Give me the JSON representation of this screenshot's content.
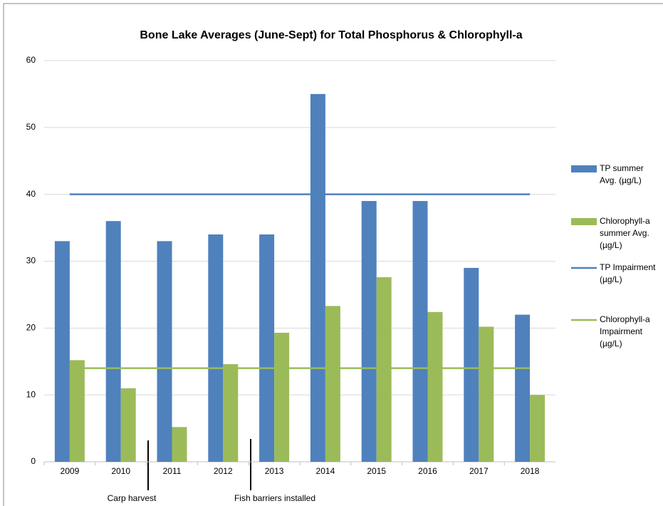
{
  "chart_data": {
    "type": "bar",
    "title": "Bone Lake Averages (June-Sept) for Total Phosphorus & Chlorophyll-a",
    "categories": [
      "2009",
      "2010",
      "2011",
      "2012",
      "2013",
      "2014",
      "2015",
      "2016",
      "2017",
      "2018"
    ],
    "series": [
      {
        "name": "TP summer Avg. (µg/L)",
        "color": "#4f81bd",
        "type": "bar",
        "values": [
          33,
          36,
          33,
          34,
          34,
          55,
          39,
          39,
          29,
          22
        ]
      },
      {
        "name": "Chlorophyll-a summer Avg. (µg/L)",
        "color": "#9bbb59",
        "type": "bar",
        "values": [
          15.2,
          11,
          5.2,
          14.6,
          19.3,
          23.3,
          27.6,
          22.4,
          20.2,
          10
        ]
      },
      {
        "name": "TP Impairment (µg/L)",
        "color": "#4f81bd",
        "type": "line",
        "values": [
          40,
          40,
          40,
          40,
          40,
          40,
          40,
          40,
          40,
          40
        ]
      },
      {
        "name": "Chlorophyll-a Impairment (µg/L)",
        "color": "#9bbb59",
        "type": "line",
        "values": [
          14,
          14,
          14,
          14,
          14,
          14,
          14,
          14,
          14,
          14
        ]
      }
    ],
    "annotations": [
      "Carp harvest",
      "Fish barriers installed"
    ],
    "ylim": [
      0,
      60
    ],
    "yticks": [
      0,
      10,
      20,
      30,
      40,
      50,
      60
    ],
    "grid": true,
    "legend": "right"
  }
}
